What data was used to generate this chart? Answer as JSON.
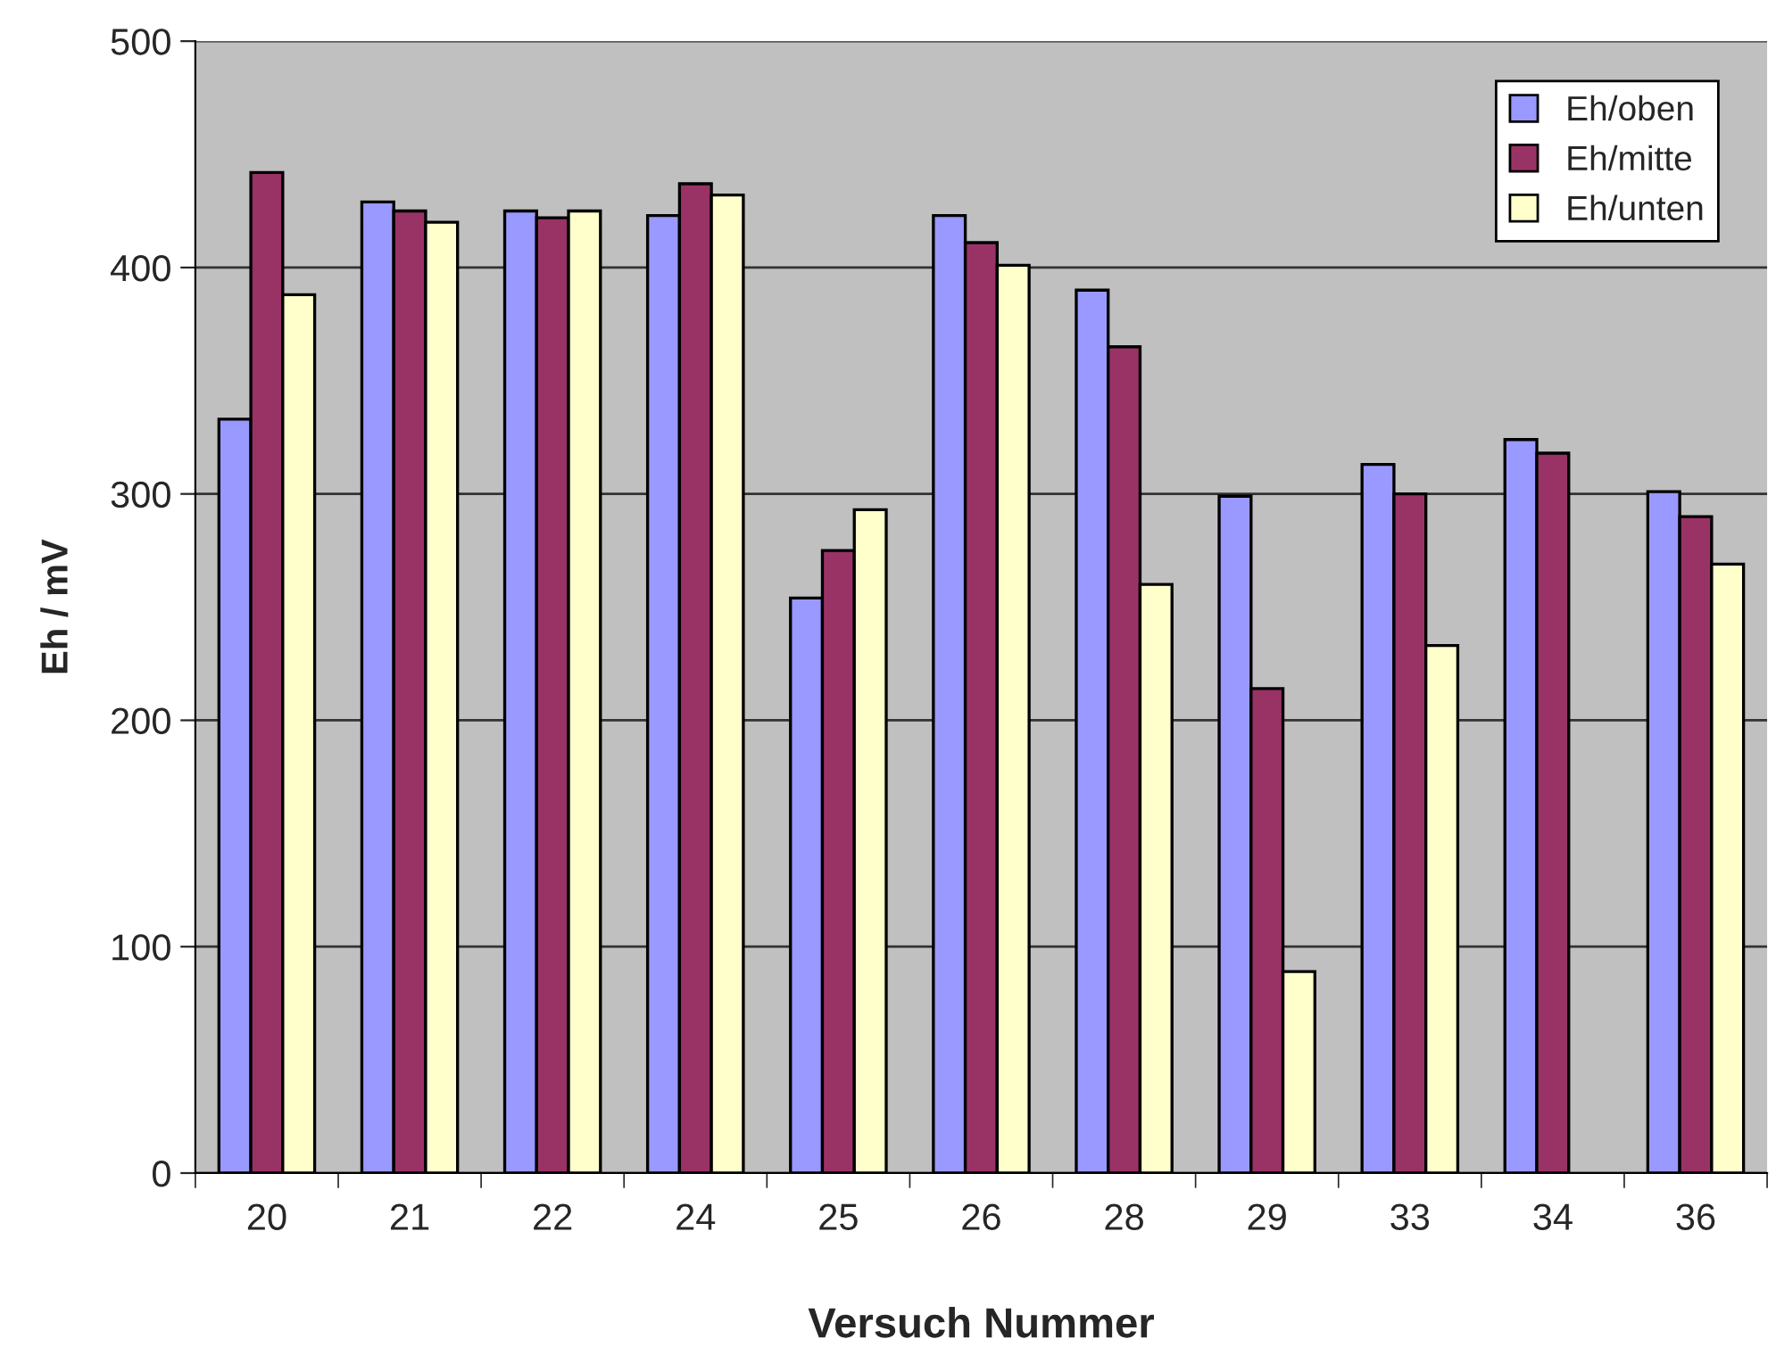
{
  "chart_data": {
    "type": "bar",
    "xlabel": "Versuch Nummer",
    "ylabel": "Eh / mV",
    "categories": [
      "20",
      "21",
      "22",
      "24",
      "25",
      "26",
      "28",
      "29",
      "33",
      "34",
      "36"
    ],
    "series": [
      {
        "name": "Eh/oben",
        "color": "#9999ff",
        "values": [
          333,
          429,
          425,
          423,
          254,
          423,
          390,
          299,
          313,
          324,
          301
        ]
      },
      {
        "name": "Eh/mitte",
        "color": "#993366",
        "values": [
          442,
          425,
          422,
          437,
          275,
          411,
          365,
          214,
          300,
          318,
          290
        ]
      },
      {
        "name": "Eh/unten",
        "color": "#ffffcc",
        "values": [
          388,
          420,
          425,
          432,
          293,
          401,
          260,
          89,
          233,
          null,
          269
        ]
      }
    ],
    "ylim": [
      0,
      500
    ],
    "yticks": [
      0,
      100,
      200,
      300,
      400,
      500
    ],
    "grid": "y",
    "legend": "top right"
  }
}
